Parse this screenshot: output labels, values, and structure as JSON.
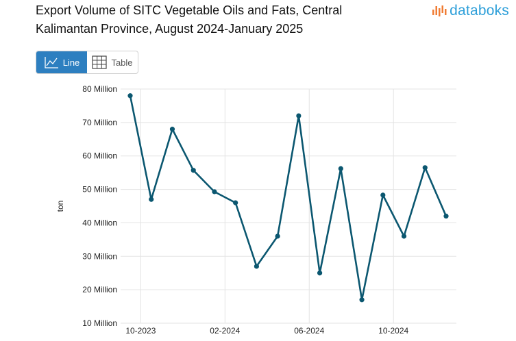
{
  "header": {
    "title_line1": "Export Volume of SITC Vegetable Oils and Fats, Central",
    "title_line2": "Kalimantan Province, August 2024-January 2025",
    "brand": "databoks"
  },
  "toggle": {
    "line_label": "Line",
    "table_label": "Table"
  },
  "colors": {
    "line": "#0b5770",
    "active": "#2d7fc0",
    "grid": "#e3e3e3",
    "brand_blue": "#2d9fd9",
    "brand_orange": "#f07c33"
  },
  "chart_data": {
    "type": "line",
    "title": "Export Volume of SITC Vegetable Oils and Fats, Central Kalimantan Province, August 2024-January 2025",
    "ylabel": "ton",
    "xlabel": "",
    "ylim": [
      10000000,
      80000000
    ],
    "yticks": [
      {
        "value": 10000000,
        "label": "10 Million"
      },
      {
        "value": 20000000,
        "label": "20 Million"
      },
      {
        "value": 30000000,
        "label": "30 Million"
      },
      {
        "value": 40000000,
        "label": "40 Million"
      },
      {
        "value": 50000000,
        "label": "50 Million"
      },
      {
        "value": 60000000,
        "label": "60 Million"
      },
      {
        "value": 70000000,
        "label": "70 Million"
      },
      {
        "value": 80000000,
        "label": "80 Million"
      }
    ],
    "xticks": [
      {
        "index": 0.5,
        "label": "10-2023"
      },
      {
        "index": 4.5,
        "label": "02-2024"
      },
      {
        "index": 8.5,
        "label": "06-2024"
      },
      {
        "index": 12.5,
        "label": "10-2024"
      }
    ],
    "x_count": 16,
    "series": [
      {
        "name": "Export Volume",
        "values": [
          78000000,
          47000000,
          68000000,
          55700000,
          49300000,
          46000000,
          27000000,
          36000000,
          72000000,
          25000000,
          56200000,
          17000000,
          48300000,
          36000000,
          56500000,
          42000000
        ]
      }
    ]
  }
}
